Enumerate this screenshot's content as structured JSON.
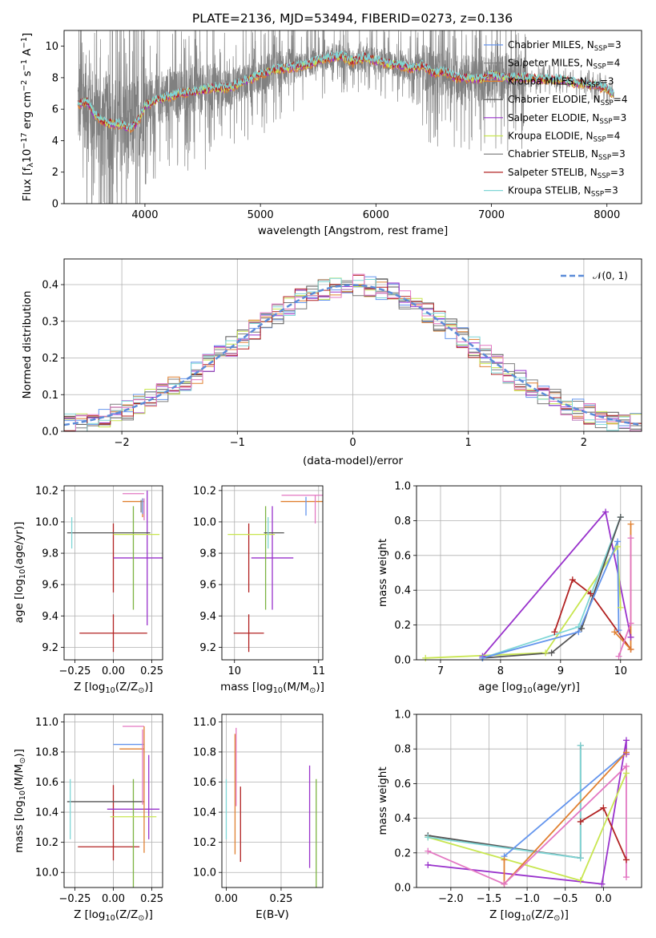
{
  "figure": {
    "title": "PLATE=2136, MJD=53494, FIBERID=0273, z=0.136"
  },
  "colors": {
    "chabrier_miles": "#6495ed",
    "salpeter_miles": "#7f7f7f",
    "kroupa_miles": "#e08030",
    "chabrier_elodie": "#555555",
    "salpeter_elodie": "#9932cc",
    "kroupa_elodie": "#c8e650",
    "chabrier_stelib": "#777777",
    "salpeter_stelib": "#b22222",
    "kroupa_stelib": "#7fd6d6",
    "pink": "#e377c2",
    "green": "#7cb342",
    "gauss": "#5b8bd8"
  },
  "chart_data": [
    {
      "id": "spectrum",
      "type": "line",
      "xlabel": "wavelength [Angstrom, rest frame]",
      "ylabel_main": "Flux [f",
      "ylabel_sub": "λ",
      "ylabel_rest": "10",
      "ylabel_exp": "−17",
      "ylabel_tail": " erg cm",
      "ylabel_exp2": "−2",
      "ylabel_tail2": " s",
      "ylabel_exp3": "−1",
      "ylabel_tail3": " A",
      "ylabel_exp4": "−1",
      "ylabel_end": "]",
      "xlim": [
        3300,
        8300
      ],
      "ylim": [
        0,
        11
      ],
      "xticks": [
        4000,
        5000,
        6000,
        7000,
        8000
      ],
      "yticks": [
        0,
        2,
        4,
        6,
        8,
        10
      ],
      "continuum": {
        "x": [
          3420,
          3500,
          3560,
          3640,
          3700,
          3800,
          3880,
          3950,
          4000,
          4100,
          4200,
          4300,
          4400,
          4500,
          4600,
          4700,
          4800,
          4900,
          5000,
          5100,
          5200,
          5300,
          5400,
          5500,
          5600,
          5700,
          5800,
          5900,
          6000,
          6100,
          6200,
          6300,
          6400,
          6500,
          6600,
          6700,
          6800,
          6900,
          7000,
          7100,
          7200,
          7300,
          7400,
          7500,
          7600,
          7700,
          7800,
          7900,
          8000,
          8060
        ],
        "y": [
          6.3,
          6.5,
          5.7,
          5.2,
          5.1,
          5.0,
          4.8,
          5.4,
          6.2,
          6.6,
          6.8,
          7.0,
          7.1,
          7.2,
          7.4,
          7.3,
          7.6,
          7.9,
          8.2,
          8.5,
          8.6,
          8.7,
          8.8,
          9.1,
          9.3,
          9.4,
          9.0,
          9.3,
          9.1,
          8.9,
          8.8,
          8.6,
          8.8,
          8.3,
          8.4,
          8.0,
          8.0,
          7.9,
          8.2,
          8.0,
          8.0,
          8.0,
          7.9,
          7.9,
          7.9,
          7.7,
          7.6,
          7.5,
          7.3,
          6.9
        ]
      },
      "legend": [
        {
          "pre": "Chabrier MILES, N",
          "sub": "SSP",
          "post": "=3",
          "color": "#6495ed"
        },
        {
          "pre": "Salpeter MILES, N",
          "sub": "SSP",
          "post": "=4",
          "color": "#7f7f7f"
        },
        {
          "pre": "Kroupa MILES, N",
          "sub": "SSP",
          "post": "=3",
          "color": "#e08030"
        },
        {
          "pre": "Chabrier ELODIE, N",
          "sub": "SSP",
          "post": "=4",
          "color": "#555555"
        },
        {
          "pre": "Salpeter ELODIE, N",
          "sub": "SSP",
          "post": "=3",
          "color": "#9932cc"
        },
        {
          "pre": "Kroupa ELODIE, N",
          "sub": "SSP",
          "post": "=4",
          "color": "#c8e650"
        },
        {
          "pre": "Chabrier STELIB, N",
          "sub": "SSP",
          "post": "=3",
          "color": "#777777"
        },
        {
          "pre": "Salpeter STELIB, N",
          "sub": "SSP",
          "post": "=3",
          "color": "#b22222"
        },
        {
          "pre": "Kroupa STELIB, N",
          "sub": "SSP",
          "post": "=3",
          "color": "#7fd6d6"
        }
      ]
    },
    {
      "id": "residuals",
      "type": "line",
      "xlabel": "(data-model)/error",
      "ylabel": "Normed distribution",
      "xlim": [
        -2.5,
        2.5
      ],
      "ylim": [
        0,
        0.47
      ],
      "xticks": [
        -2,
        -1,
        0,
        1,
        2
      ],
      "xticklabels": [
        "−2",
        "−1",
        "0",
        "1",
        "2"
      ],
      "yticks": [
        0.0,
        0.1,
        0.2,
        0.3,
        0.4
      ],
      "yticklabels": [
        "0.0",
        "0.1",
        "0.2",
        "0.3",
        "0.4"
      ],
      "grid": true,
      "legend_label": "𝒩(0, 1)",
      "bin_width": 0.1,
      "bin_start": -2.5,
      "series_colors": [
        "#6495ed",
        "#7f7f7f",
        "#e08030",
        "#555555",
        "#9932cc",
        "#c8e650",
        "#777777",
        "#b22222",
        "#7fd6d6",
        "#e377c2"
      ]
    },
    {
      "id": "age_vs_Z",
      "type": "scatter",
      "xlabel": "Z [log",
      "xlabel_sub": "10",
      "xlabel_rest": "(Z/Z",
      "xlabel_sub2": "⊙",
      "xlabel_end": ")]",
      "ylabel": "age  [log",
      "ylabel_sub": "10",
      "ylabel_rest": "(age/yr)]",
      "xlim": [
        -0.32,
        0.32
      ],
      "ylim": [
        9.12,
        10.23
      ],
      "xticks": [
        -0.25,
        0.0,
        0.25
      ],
      "xticklabels": [
        "−0.25",
        "0.00",
        "0.25"
      ],
      "yticks": [
        9.2,
        9.4,
        9.6,
        9.8,
        10.0,
        10.2
      ],
      "yticklabels": [
        "9.2",
        "9.4",
        "9.6",
        "9.8",
        "10.0",
        "10.2"
      ],
      "grid": true,
      "points": [
        {
          "x": 0.0,
          "y": 9.29,
          "xerr": 0.22,
          "yerr": 0.12,
          "color": "#b22222"
        },
        {
          "x": 0.0,
          "y": 9.77,
          "xerr": 0.0,
          "yerr": 0.22,
          "color": "#b22222"
        },
        {
          "x": 0.17,
          "y": 9.77,
          "xerr": 0.17,
          "yerr": 0.0,
          "color": "#9932cc"
        },
        {
          "x": 0.22,
          "y": 9.77,
          "xerr": 0.0,
          "yerr": 0.43,
          "color": "#9932cc"
        },
        {
          "x": 0.13,
          "y": 9.77,
          "xerr": 0.0,
          "yerr": 0.33,
          "color": "#7cb342"
        },
        {
          "x": 0.15,
          "y": 9.92,
          "xerr": 0.15,
          "yerr": 0.0,
          "color": "#c8e650"
        },
        {
          "x": -0.03,
          "y": 9.93,
          "xerr": 0.27,
          "yerr": 0.0,
          "color": "#555555"
        },
        {
          "x": -0.27,
          "y": 9.93,
          "xerr": 0.0,
          "yerr": 0.1,
          "color": "#7fd6d6"
        },
        {
          "x": 0.13,
          "y": 10.13,
          "xerr": 0.07,
          "yerr": 0.0,
          "color": "#e08030"
        },
        {
          "x": 0.13,
          "y": 10.18,
          "xerr": 0.07,
          "yerr": 0.0,
          "color": "#e377c2"
        },
        {
          "x": 0.2,
          "y": 10.08,
          "xerr": 0.0,
          "yerr": 0.07,
          "color": "#e377c2"
        },
        {
          "x": 0.19,
          "y": 10.09,
          "xerr": 0.0,
          "yerr": 0.06,
          "color": "#e08030"
        },
        {
          "x": 0.19,
          "y": 10.1,
          "xerr": 0.0,
          "yerr": 0.05,
          "color": "#6495ed"
        },
        {
          "x": 0.18,
          "y": 10.1,
          "xerr": 0.0,
          "yerr": 0.04,
          "color": "#7f7f7f"
        }
      ]
    },
    {
      "id": "age_vs_mass",
      "type": "scatter",
      "xlabel": "mass [log",
      "xlabel_sub": "10",
      "xlabel_rest": "(M/M",
      "xlabel_sub2": "⊙",
      "xlabel_end": ")]",
      "xlim": [
        9.85,
        11.05
      ],
      "ylim": [
        9.12,
        10.23
      ],
      "xticks": [
        10,
        11
      ],
      "xticklabels": [
        "10",
        "11"
      ],
      "yticks": [
        9.2,
        9.4,
        9.6,
        9.8,
        10.0,
        10.2
      ],
      "yticklabels": [
        "9.2",
        "9.4",
        "9.6",
        "9.8",
        "10.0",
        "10.2"
      ],
      "grid": true,
      "points": [
        {
          "x": 10.17,
          "y": 9.29,
          "xerr": 0.18,
          "yerr": 0.12,
          "color": "#b22222"
        },
        {
          "x": 10.17,
          "y": 9.77,
          "xerr": 0.0,
          "yerr": 0.22,
          "color": "#b22222"
        },
        {
          "x": 10.45,
          "y": 9.77,
          "xerr": 0.25,
          "yerr": 0.0,
          "color": "#9932cc"
        },
        {
          "x": 10.45,
          "y": 9.77,
          "xerr": 0.0,
          "yerr": 0.33,
          "color": "#9932cc"
        },
        {
          "x": 10.37,
          "y": 9.77,
          "xerr": 0.0,
          "yerr": 0.33,
          "color": "#7cb342"
        },
        {
          "x": 10.2,
          "y": 9.92,
          "xerr": 0.28,
          "yerr": 0.0,
          "color": "#c8e650"
        },
        {
          "x": 10.47,
          "y": 9.93,
          "xerr": 0.12,
          "yerr": 0.0,
          "color": "#555555"
        },
        {
          "x": 10.4,
          "y": 9.93,
          "xerr": 0.0,
          "yerr": 0.1,
          "color": "#7fd6d6"
        },
        {
          "x": 10.85,
          "y": 10.13,
          "xerr": 0.3,
          "yerr": 0.0,
          "color": "#e08030"
        },
        {
          "x": 10.96,
          "y": 10.17,
          "xerr": 0.4,
          "yerr": 0.0,
          "color": "#e377c2"
        },
        {
          "x": 10.96,
          "y": 10.08,
          "xerr": 0.0,
          "yerr": 0.09,
          "color": "#e377c2"
        },
        {
          "x": 10.85,
          "y": 10.1,
          "xerr": 0.0,
          "yerr": 0.06,
          "color": "#6495ed"
        }
      ]
    },
    {
      "id": "weight_vs_age",
      "type": "line",
      "xlabel": "age  [log",
      "xlabel_sub": "10",
      "xlabel_rest": "(age/yr)]",
      "ylabel": "mass weight",
      "xlim": [
        6.6,
        10.35
      ],
      "ylim": [
        0,
        1.0
      ],
      "xticks": [
        7,
        8,
        9,
        10
      ],
      "xticklabels": [
        "7",
        "8",
        "9",
        "10"
      ],
      "yticks": [
        0.0,
        0.2,
        0.4,
        0.6,
        0.8,
        1.0
      ],
      "yticklabels": [
        "0.0",
        "0.2",
        "0.4",
        "0.6",
        "0.8",
        "1.0"
      ],
      "grid": true,
      "series": [
        {
          "color": "#9932cc",
          "x": [
            7.7,
            9.75,
            10.17
          ],
          "y": [
            0.02,
            0.85,
            0.13
          ]
        },
        {
          "color": "#b22222",
          "x": [
            8.9,
            9.2,
            9.5,
            10.17
          ],
          "y": [
            0.16,
            0.46,
            0.38,
            0.06
          ]
        },
        {
          "color": "#c8e650",
          "x": [
            6.75,
            8.75,
            9.95,
            10.0
          ],
          "y": [
            0.01,
            0.04,
            0.65,
            0.3
          ]
        },
        {
          "color": "#7fd6d6",
          "x": [
            7.7,
            9.3,
            10.0
          ],
          "y": [
            0.01,
            0.19,
            0.82
          ]
        },
        {
          "color": "#555555",
          "x": [
            7.7,
            8.85,
            9.35,
            10.0
          ],
          "y": [
            0.01,
            0.04,
            0.18,
            0.82
          ]
        },
        {
          "color": "#6495ed",
          "x": [
            7.7,
            9.3,
            9.95,
            9.97
          ],
          "y": [
            0.01,
            0.16,
            0.68,
            0.17
          ]
        },
        {
          "color": "#e08030",
          "x": [
            9.9,
            10.17,
            10.17
          ],
          "y": [
            0.16,
            0.06,
            0.78
          ]
        },
        {
          "color": "#e377c2",
          "x": [
            9.97,
            10.17,
            10.17
          ],
          "y": [
            0.02,
            0.21,
            0.7
          ]
        }
      ]
    },
    {
      "id": "mass_vs_Z",
      "type": "scatter",
      "xlabel": "Z [log",
      "xlabel_sub": "10",
      "xlabel_rest": "(Z/Z",
      "xlabel_sub2": "⊙",
      "xlabel_end": ")]",
      "ylabel": "mass [log",
      "ylabel_sub": "10",
      "ylabel_rest": "(M/M",
      "ylabel_sub2": "⊙",
      "ylabel_end": ")]",
      "xlim": [
        -0.32,
        0.32
      ],
      "ylim": [
        9.9,
        11.05
      ],
      "xticks": [
        -0.25,
        0.0,
        0.25
      ],
      "xticklabels": [
        "−0.25",
        "0.00",
        "0.25"
      ],
      "yticks": [
        10.0,
        10.2,
        10.4,
        10.6,
        10.8,
        11.0
      ],
      "yticklabels": [
        "10.0",
        "10.2",
        "10.4",
        "10.6",
        "10.8",
        "11.0"
      ],
      "grid": true,
      "points": [
        {
          "x": -0.03,
          "y": 10.17,
          "xerr": 0.2,
          "yerr": 0.0,
          "color": "#b22222"
        },
        {
          "x": 0.0,
          "y": 10.33,
          "xerr": 0.0,
          "yerr": 0.25,
          "color": "#b22222"
        },
        {
          "x": 0.13,
          "y": 10.42,
          "xerr": 0.17,
          "yerr": 0.0,
          "color": "#9932cc"
        },
        {
          "x": 0.23,
          "y": 10.5,
          "xerr": 0.0,
          "yerr": 0.28,
          "color": "#9932cc"
        },
        {
          "x": 0.13,
          "y": 10.26,
          "xerr": 0.0,
          "yerr": 0.36,
          "color": "#7cb342"
        },
        {
          "x": 0.13,
          "y": 10.37,
          "xerr": 0.15,
          "yerr": 0.0,
          "color": "#c8e650"
        },
        {
          "x": -0.05,
          "y": 10.47,
          "xerr": 0.25,
          "yerr": 0.0,
          "color": "#555555"
        },
        {
          "x": -0.28,
          "y": 10.42,
          "xerr": 0.0,
          "yerr": 0.2,
          "color": "#7fd6d6"
        },
        {
          "x": 0.1,
          "y": 10.85,
          "xerr": 0.1,
          "yerr": 0.0,
          "color": "#6495ed"
        },
        {
          "x": 0.12,
          "y": 10.82,
          "xerr": 0.08,
          "yerr": 0.0,
          "color": "#e08030"
        },
        {
          "x": 0.13,
          "y": 10.97,
          "xerr": 0.07,
          "yerr": 0.0,
          "color": "#e377c2"
        },
        {
          "x": 0.2,
          "y": 10.55,
          "xerr": 0.0,
          "yerr": 0.42,
          "color": "#e08030"
        },
        {
          "x": 0.19,
          "y": 10.7,
          "xerr": 0.0,
          "yerr": 0.25,
          "color": "#e377c2"
        }
      ]
    },
    {
      "id": "mass_vs_ebv",
      "type": "scatter",
      "xlabel": "E(B-V)",
      "xlim": [
        -0.02,
        0.44
      ],
      "ylim": [
        9.9,
        11.05
      ],
      "xticks": [
        0.0,
        0.25
      ],
      "xticklabels": [
        "0.00",
        "0.25"
      ],
      "yticks": [
        10.0,
        10.2,
        10.4,
        10.6,
        10.8,
        11.0
      ],
      "yticklabels": [
        "10.0",
        "10.2",
        "10.4",
        "10.6",
        "10.8",
        "11.0"
      ],
      "grid": true,
      "points": [
        {
          "x": 0.0,
          "y": 10.42,
          "xerr": 0.0,
          "yerr": 0.2,
          "color": "#7fd6d6"
        },
        {
          "x": 0.04,
          "y": 10.52,
          "xerr": 0.0,
          "yerr": 0.4,
          "color": "#e08030"
        },
        {
          "x": 0.045,
          "y": 10.7,
          "xerr": 0.0,
          "yerr": 0.26,
          "color": "#e377c2"
        },
        {
          "x": 0.065,
          "y": 10.32,
          "xerr": 0.0,
          "yerr": 0.25,
          "color": "#b22222"
        },
        {
          "x": 0.38,
          "y": 10.37,
          "xerr": 0.0,
          "yerr": 0.34,
          "color": "#9932cc"
        },
        {
          "x": 0.41,
          "y": 10.26,
          "xerr": 0.0,
          "yerr": 0.36,
          "color": "#7cb342"
        }
      ]
    },
    {
      "id": "weight_vs_Z",
      "type": "line",
      "xlabel": "Z [log",
      "xlabel_sub": "10",
      "xlabel_rest": "(Z/Z",
      "xlabel_sub2": "⊙",
      "xlabel_end": ")]",
      "ylabel": "mass weight",
      "xlim": [
        -2.45,
        0.5
      ],
      "ylim": [
        0,
        1.0
      ],
      "xticks": [
        -2.0,
        -1.5,
        -1.0,
        -0.5,
        0.0
      ],
      "xticklabels": [
        "−2.0",
        "−1.5",
        "−1.0",
        "−0.5",
        "0.0"
      ],
      "yticks": [
        0.0,
        0.2,
        0.4,
        0.6,
        0.8,
        1.0
      ],
      "yticklabels": [
        "0.0",
        "0.2",
        "0.4",
        "0.6",
        "0.8",
        "1.0"
      ],
      "grid": true,
      "series": [
        {
          "color": "#9932cc",
          "x": [
            -2.3,
            -0.02,
            0.3,
            0.3
          ],
          "y": [
            0.13,
            0.02,
            0.85,
            0.77
          ]
        },
        {
          "color": "#b22222",
          "x": [
            -0.3,
            0.0,
            0.3
          ],
          "y": [
            0.38,
            0.46,
            0.16
          ]
        },
        {
          "color": "#c8e650",
          "x": [
            -2.3,
            -0.3,
            0.3
          ],
          "y": [
            0.29,
            0.04,
            0.66
          ]
        },
        {
          "color": "#555555",
          "x": [
            -2.3,
            -0.3,
            -0.3
          ],
          "y": [
            0.3,
            0.17,
            0.82
          ]
        },
        {
          "color": "#7fd6d6",
          "x": [
            -2.3,
            -0.3,
            -0.3
          ],
          "y": [
            0.29,
            0.17,
            0.82
          ]
        },
        {
          "color": "#6495ed",
          "x": [
            -1.3,
            0.3
          ],
          "y": [
            0.18,
            0.78
          ]
        },
        {
          "color": "#e08030",
          "x": [
            -1.3,
            -1.3,
            0.3
          ],
          "y": [
            0.16,
            0.02,
            0.78
          ]
        },
        {
          "color": "#e377c2",
          "x": [
            -2.3,
            -1.3,
            0.3,
            0.3
          ],
          "y": [
            0.21,
            0.02,
            0.7,
            0.06
          ]
        }
      ]
    }
  ]
}
